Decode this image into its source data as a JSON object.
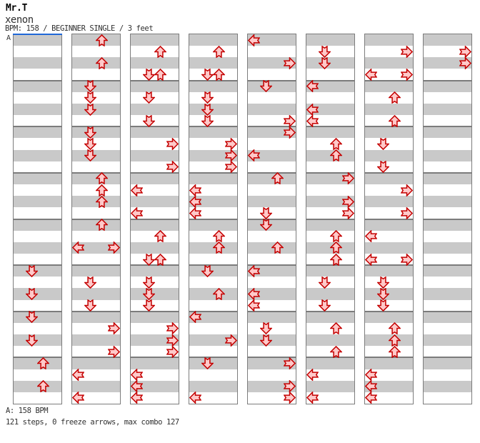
{
  "header": {
    "artist": "Mr.T",
    "title": "xenon",
    "details": "BPM: 158 / BEGINNER SINGLE / 3 feet"
  },
  "footer": {
    "marker_legend": "A: 158 BPM",
    "stats": "121 steps, 0 freeze arrows, max combo 127"
  },
  "chart": {
    "marker_label": "A",
    "lanes": [
      "left",
      "down",
      "up",
      "right"
    ],
    "rows_per_panel": 32,
    "rows_per_measure": 4,
    "colors": {
      "arrow_fill": "#FFC9C9",
      "arrow_stroke": "#C40000",
      "stripe_gray": "#C9C9C9",
      "stripe_white": "#FFFFFF",
      "border": "#7C7C7C",
      "bpm_marker_line": "#2068D8"
    },
    "panels": [
      {
        "notes": [
          [
            20,
            "D"
          ],
          [
            22,
            "D"
          ],
          [
            24,
            "D"
          ],
          [
            26,
            "D"
          ],
          [
            28,
            "U"
          ],
          [
            30,
            "U"
          ]
        ]
      },
      {
        "notes": [
          [
            0,
            "U"
          ],
          [
            2,
            "U"
          ],
          [
            4,
            "D"
          ],
          [
            5,
            "D"
          ],
          [
            6,
            "D"
          ],
          [
            8,
            "D"
          ],
          [
            9,
            "D"
          ],
          [
            10,
            "D"
          ],
          [
            12,
            "U"
          ],
          [
            13,
            "U"
          ],
          [
            14,
            "U"
          ],
          [
            16,
            "U"
          ],
          [
            18,
            "L"
          ],
          [
            18,
            "R"
          ],
          [
            21,
            "D"
          ],
          [
            23,
            "D"
          ],
          [
            25,
            "R"
          ],
          [
            27,
            "R"
          ],
          [
            29,
            "L"
          ],
          [
            31,
            "L"
          ]
        ]
      },
      {
        "notes": [
          [
            1,
            "U"
          ],
          [
            3,
            "D"
          ],
          [
            3,
            "U"
          ],
          [
            5,
            "D"
          ],
          [
            7,
            "D"
          ],
          [
            9,
            "R"
          ],
          [
            11,
            "R"
          ],
          [
            13,
            "L"
          ],
          [
            15,
            "L"
          ],
          [
            17,
            "U"
          ],
          [
            19,
            "D"
          ],
          [
            19,
            "U"
          ],
          [
            21,
            "D"
          ],
          [
            22,
            "D"
          ],
          [
            23,
            "D"
          ],
          [
            25,
            "R"
          ],
          [
            26,
            "R"
          ],
          [
            27,
            "R"
          ],
          [
            29,
            "L"
          ],
          [
            30,
            "L"
          ],
          [
            31,
            "L"
          ]
        ]
      },
      {
        "notes": [
          [
            1,
            "U"
          ],
          [
            3,
            "D"
          ],
          [
            3,
            "U"
          ],
          [
            5,
            "D"
          ],
          [
            6,
            "D"
          ],
          [
            7,
            "D"
          ],
          [
            9,
            "R"
          ],
          [
            10,
            "R"
          ],
          [
            11,
            "R"
          ],
          [
            13,
            "L"
          ],
          [
            14,
            "L"
          ],
          [
            15,
            "L"
          ],
          [
            17,
            "U"
          ],
          [
            18,
            "U"
          ],
          [
            20,
            "D"
          ],
          [
            22,
            "U"
          ],
          [
            24,
            "L"
          ],
          [
            26,
            "R"
          ],
          [
            28,
            "D"
          ],
          [
            31,
            "L"
          ]
        ]
      },
      {
        "notes": [
          [
            0,
            "L"
          ],
          [
            2,
            "R"
          ],
          [
            4,
            "D"
          ],
          [
            7,
            "R"
          ],
          [
            8,
            "R"
          ],
          [
            10,
            "L"
          ],
          [
            12,
            "U"
          ],
          [
            15,
            "D"
          ],
          [
            16,
            "D"
          ],
          [
            18,
            "U"
          ],
          [
            20,
            "L"
          ],
          [
            22,
            "L"
          ],
          [
            23,
            "L"
          ],
          [
            25,
            "D"
          ],
          [
            26,
            "D"
          ],
          [
            28,
            "R"
          ],
          [
            30,
            "R"
          ],
          [
            31,
            "R"
          ]
        ]
      },
      {
        "notes": [
          [
            1,
            "D"
          ],
          [
            2,
            "D"
          ],
          [
            4,
            "L"
          ],
          [
            6,
            "L"
          ],
          [
            7,
            "L"
          ],
          [
            9,
            "U"
          ],
          [
            10,
            "U"
          ],
          [
            12,
            "R"
          ],
          [
            14,
            "R"
          ],
          [
            15,
            "R"
          ],
          [
            17,
            "U"
          ],
          [
            18,
            "U"
          ],
          [
            19,
            "U"
          ],
          [
            21,
            "D"
          ],
          [
            23,
            "D"
          ],
          [
            25,
            "U"
          ],
          [
            27,
            "U"
          ],
          [
            29,
            "L"
          ],
          [
            31,
            "L"
          ]
        ]
      },
      {
        "notes": [
          [
            1,
            "R"
          ],
          [
            3,
            "L"
          ],
          [
            3,
            "R"
          ],
          [
            5,
            "U"
          ],
          [
            7,
            "U"
          ],
          [
            9,
            "D"
          ],
          [
            11,
            "D"
          ],
          [
            13,
            "R"
          ],
          [
            15,
            "R"
          ],
          [
            17,
            "L"
          ],
          [
            19,
            "L"
          ],
          [
            19,
            "R"
          ],
          [
            21,
            "D"
          ],
          [
            22,
            "D"
          ],
          [
            23,
            "D"
          ],
          [
            25,
            "U"
          ],
          [
            26,
            "U"
          ],
          [
            27,
            "U"
          ],
          [
            29,
            "L"
          ],
          [
            30,
            "L"
          ],
          [
            31,
            "L"
          ]
        ]
      },
      {
        "notes": [
          [
            1,
            "R"
          ],
          [
            2,
            "R"
          ]
        ]
      }
    ]
  }
}
